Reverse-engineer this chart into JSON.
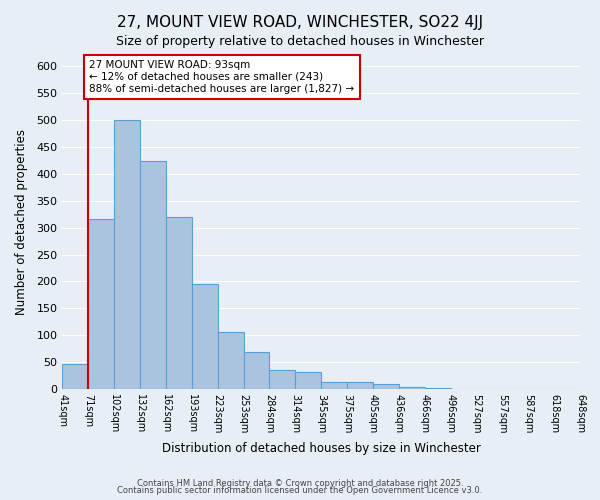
{
  "title": "27, MOUNT VIEW ROAD, WINCHESTER, SO22 4JJ",
  "subtitle": "Size of property relative to detached houses in Winchester",
  "xlabel": "Distribution of detached houses by size in Winchester",
  "ylabel": "Number of detached properties",
  "footnote1": "Contains HM Land Registry data © Crown copyright and database right 2025.",
  "footnote2": "Contains public sector information licensed under the Open Government Licence v3.0.",
  "bin_labels": [
    "41sqm",
    "71sqm",
    "102sqm",
    "132sqm",
    "162sqm",
    "193sqm",
    "223sqm",
    "253sqm",
    "284sqm",
    "314sqm",
    "345sqm",
    "375sqm",
    "405sqm",
    "436sqm",
    "466sqm",
    "496sqm",
    "527sqm",
    "557sqm",
    "587sqm",
    "618sqm",
    "648sqm"
  ],
  "bar_heights": [
    47,
    315,
    500,
    424,
    320,
    196,
    106,
    70,
    35,
    32,
    14,
    14,
    10,
    5,
    2,
    1,
    1,
    1,
    1,
    0
  ],
  "bar_color": "#aac4e0",
  "bar_edge_color": "#5a9fd4",
  "red_line_x": 1.0,
  "annotation_text": "27 MOUNT VIEW ROAD: 93sqm\n← 12% of detached houses are smaller (243)\n88% of semi-detached houses are larger (1,827) →",
  "annotation_box_color": "#ffffff",
  "annotation_box_edge_color": "#cc0000",
  "red_line_color": "#cc0000",
  "ylim": [
    0,
    620
  ],
  "yticks": [
    0,
    50,
    100,
    150,
    200,
    250,
    300,
    350,
    400,
    450,
    500,
    550,
    600
  ],
  "background_color": "#e8eef5",
  "plot_background_color": "#e8eef5"
}
